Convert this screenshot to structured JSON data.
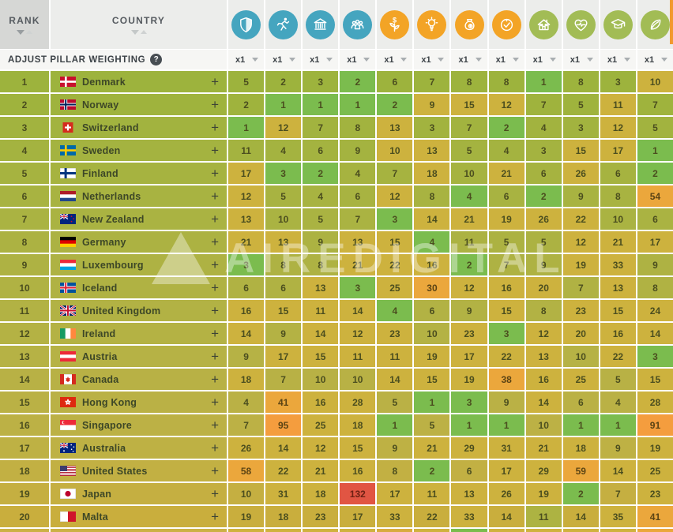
{
  "header": {
    "rank_label": "RANK",
    "country_label": "COUNTRY",
    "pillars": [
      {
        "icon": "shield-icon",
        "color": "#45a5bf"
      },
      {
        "icon": "runner-icon",
        "color": "#45a5bf"
      },
      {
        "icon": "bank-icon",
        "color": "#45a5bf"
      },
      {
        "icon": "people-icon",
        "color": "#45a5bf"
      },
      {
        "icon": "money-plant-icon",
        "color": "#f3a426"
      },
      {
        "icon": "lightbulb-icon",
        "color": "#f3a426"
      },
      {
        "icon": "money-bag-icon",
        "color": "#f3a426"
      },
      {
        "icon": "dollar-check-icon",
        "color": "#f3a426"
      },
      {
        "icon": "house-icon",
        "color": "#a2bc55"
      },
      {
        "icon": "heart-pulse-icon",
        "color": "#a2bc55"
      },
      {
        "icon": "graduation-cap-icon",
        "color": "#a2bc55"
      },
      {
        "icon": "leaf-icon",
        "color": "#a2bc55"
      }
    ]
  },
  "weighting": {
    "label": "ADJUST PILLAR WEIGHTING",
    "help_label": "?",
    "multipliers": [
      "x1",
      "x1",
      "x1",
      "x1",
      "x1",
      "x1",
      "x1",
      "x1",
      "x1",
      "x1",
      "x1",
      "x1"
    ]
  },
  "add_label": "+",
  "watermark": {
    "text": "AIREDIGITAL"
  },
  "palette": {
    "G": "#7bbc4e",
    "O": "#adb342",
    "Y": "#cdb23e",
    "A": "#eba73c",
    "R": "#f49d3e",
    "X": "#e15543"
  },
  "accents": {
    "orange_strip": "#f2992f"
  },
  "rows": [
    {
      "rank": 1,
      "country": "Denmark",
      "flag": "dk",
      "row_color": "#9db33d",
      "values": [
        5,
        2,
        3,
        2,
        6,
        7,
        8,
        8,
        1,
        8,
        3,
        10
      ],
      "cell_colors": [
        "-",
        "-",
        "-",
        "G",
        "-",
        "-",
        "-",
        "-",
        "G",
        "-",
        "-",
        "Y"
      ]
    },
    {
      "rank": 2,
      "country": "Norway",
      "flag": "no",
      "row_color": "#9fb33d",
      "values": [
        2,
        1,
        1,
        1,
        2,
        9,
        15,
        12,
        7,
        5,
        11,
        7
      ],
      "cell_colors": [
        "-",
        "G",
        "G",
        "G",
        "G",
        "Y",
        "Y",
        "Y",
        "-",
        "-",
        "Y",
        "-"
      ]
    },
    {
      "rank": 3,
      "country": "Switzerland",
      "flag": "ch",
      "row_color": "#a2b33f",
      "values": [
        1,
        12,
        7,
        8,
        13,
        3,
        7,
        2,
        4,
        3,
        12,
        5
      ],
      "cell_colors": [
        "G",
        "Y",
        "-",
        "-",
        "Y",
        "-",
        "-",
        "G",
        "-",
        "-",
        "Y",
        "-"
      ]
    },
    {
      "rank": 4,
      "country": "Sweden",
      "flag": "se",
      "row_color": "#a4b340",
      "values": [
        11,
        4,
        6,
        9,
        10,
        13,
        5,
        4,
        3,
        15,
        17,
        1
      ],
      "cell_colors": [
        "-",
        "-",
        "-",
        "-",
        "Y",
        "Y",
        "-",
        "-",
        "-",
        "Y",
        "Y",
        "G"
      ]
    },
    {
      "rank": 5,
      "country": "Finland",
      "flag": "fi",
      "row_color": "#a6b340",
      "values": [
        17,
        3,
        2,
        4,
        7,
        18,
        10,
        21,
        6,
        26,
        6,
        2
      ],
      "cell_colors": [
        "Y",
        "G",
        "G",
        "-",
        "-",
        "Y",
        "-",
        "Y",
        "-",
        "Y",
        "-",
        "G"
      ]
    },
    {
      "rank": 6,
      "country": "Netherlands",
      "flag": "nl",
      "row_color": "#a8b341",
      "values": [
        12,
        5,
        4,
        6,
        12,
        8,
        4,
        6,
        2,
        9,
        8,
        54
      ],
      "cell_colors": [
        "Y",
        "-",
        "-",
        "-",
        "Y",
        "-",
        "G",
        "-",
        "G",
        "-",
        "-",
        "A"
      ]
    },
    {
      "rank": 7,
      "country": "New Zealand",
      "flag": "nz",
      "row_color": "#aab342",
      "values": [
        13,
        10,
        5,
        7,
        3,
        14,
        21,
        19,
        26,
        22,
        10,
        6
      ],
      "cell_colors": [
        "Y",
        "-",
        "-",
        "-",
        "G",
        "Y",
        "Y",
        "Y",
        "Y",
        "Y",
        "-",
        "-"
      ]
    },
    {
      "rank": 8,
      "country": "Germany",
      "flag": "de",
      "row_color": "#acb242",
      "values": [
        21,
        13,
        9,
        13,
        15,
        4,
        11,
        5,
        5,
        12,
        21,
        17
      ],
      "cell_colors": [
        "Y",
        "Y",
        "-",
        "Y",
        "Y",
        "G",
        "-",
        "-",
        "-",
        "Y",
        "Y",
        "Y"
      ]
    },
    {
      "rank": 9,
      "country": "Luxembourg",
      "flag": "lu",
      "row_color": "#aeb243",
      "values": [
        3,
        8,
        8,
        21,
        22,
        16,
        2,
        7,
        9,
        19,
        33,
        9
      ],
      "cell_colors": [
        "G",
        "-",
        "-",
        "Y",
        "Y",
        "Y",
        "G",
        "-",
        "-",
        "Y",
        "Y",
        "-"
      ]
    },
    {
      "rank": 10,
      "country": "Iceland",
      "flag": "is",
      "row_color": "#b0b243",
      "values": [
        6,
        6,
        13,
        3,
        25,
        30,
        12,
        16,
        20,
        7,
        13,
        8
      ],
      "cell_colors": [
        "-",
        "-",
        "Y",
        "G",
        "Y",
        "A",
        "Y",
        "Y",
        "Y",
        "-",
        "Y",
        "-"
      ]
    },
    {
      "rank": 11,
      "country": "United Kingdom",
      "flag": "gb",
      "row_color": "#b2b244",
      "values": [
        16,
        15,
        11,
        14,
        4,
        6,
        9,
        15,
        8,
        23,
        15,
        24
      ],
      "cell_colors": [
        "Y",
        "Y",
        "Y",
        "Y",
        "G",
        "-",
        "-",
        "Y",
        "-",
        "Y",
        "Y",
        "Y"
      ]
    },
    {
      "rank": 12,
      "country": "Ireland",
      "flag": "ie",
      "row_color": "#b4b244",
      "values": [
        14,
        9,
        14,
        12,
        23,
        10,
        23,
        3,
        12,
        20,
        16,
        14
      ],
      "cell_colors": [
        "Y",
        "-",
        "Y",
        "Y",
        "Y",
        "-",
        "Y",
        "G",
        "Y",
        "Y",
        "Y",
        "Y"
      ]
    },
    {
      "rank": 13,
      "country": "Austria",
      "flag": "at",
      "row_color": "#b6b245",
      "values": [
        9,
        17,
        15,
        11,
        11,
        19,
        17,
        22,
        13,
        10,
        22,
        3
      ],
      "cell_colors": [
        "-",
        "Y",
        "Y",
        "Y",
        "Y",
        "Y",
        "Y",
        "Y",
        "Y",
        "-",
        "Y",
        "G"
      ]
    },
    {
      "rank": 14,
      "country": "Canada",
      "flag": "ca",
      "row_color": "#b8b145",
      "values": [
        18,
        7,
        10,
        10,
        14,
        15,
        19,
        38,
        16,
        25,
        5,
        15
      ],
      "cell_colors": [
        "Y",
        "-",
        "-",
        "-",
        "Y",
        "Y",
        "Y",
        "A",
        "Y",
        "Y",
        "-",
        "Y"
      ]
    },
    {
      "rank": 15,
      "country": "Hong Kong",
      "flag": "hk",
      "row_color": "#bab145",
      "values": [
        4,
        41,
        16,
        28,
        5,
        1,
        3,
        9,
        14,
        6,
        4,
        28
      ],
      "cell_colors": [
        "-",
        "A",
        "Y",
        "Y",
        "-",
        "G",
        "G",
        "-",
        "Y",
        "-",
        "-",
        "Y"
      ]
    },
    {
      "rank": 16,
      "country": "Singapore",
      "flag": "sg",
      "row_color": "#bcb145",
      "values": [
        7,
        95,
        25,
        18,
        1,
        5,
        1,
        1,
        10,
        1,
        1,
        91
      ],
      "cell_colors": [
        "-",
        "R",
        "Y",
        "Y",
        "G",
        "-",
        "G",
        "G",
        "-",
        "G",
        "G",
        "R"
      ]
    },
    {
      "rank": 17,
      "country": "Australia",
      "flag": "au",
      "row_color": "#beb144",
      "values": [
        26,
        14,
        12,
        15,
        9,
        21,
        29,
        31,
        21,
        18,
        9,
        19
      ],
      "cell_colors": [
        "Y",
        "Y",
        "Y",
        "Y",
        "-",
        "Y",
        "Y",
        "Y",
        "Y",
        "Y",
        "-",
        "Y"
      ]
    },
    {
      "rank": 18,
      "country": "United States",
      "flag": "us",
      "row_color": "#c2b043",
      "values": [
        58,
        22,
        21,
        16,
        8,
        2,
        6,
        17,
        29,
        59,
        14,
        25
      ],
      "cell_colors": [
        "A",
        "Y",
        "Y",
        "Y",
        "-",
        "G",
        "-",
        "Y",
        "Y",
        "A",
        "Y",
        "Y"
      ]
    },
    {
      "rank": 19,
      "country": "Japan",
      "flag": "jp",
      "row_color": "#c5af41",
      "values": [
        10,
        31,
        18,
        132,
        17,
        11,
        13,
        26,
        19,
        2,
        7,
        23
      ],
      "cell_colors": [
        "-",
        "Y",
        "Y",
        "X",
        "Y",
        "Y",
        "Y",
        "Y",
        "Y",
        "G",
        "-",
        "Y"
      ]
    },
    {
      "rank": 20,
      "country": "Malta",
      "flag": "mt",
      "row_color": "#c9ae3d",
      "values": [
        19,
        18,
        23,
        17,
        33,
        22,
        33,
        14,
        11,
        14,
        35,
        41
      ],
      "cell_colors": [
        "-",
        "-",
        "-",
        "-",
        "Y",
        "-",
        "Y",
        "-",
        "O",
        "-",
        "Y",
        "A"
      ]
    }
  ],
  "partial_row": {
    "colors": [
      "#cbb145",
      "#cbb145",
      "#cfb23e",
      "#cfb23e",
      "#cfb23e",
      "#cfb23e",
      "#d8ab3f",
      "#cfb23e",
      "#7abc4d",
      "#cfb23e",
      "#cfb23e",
      "#cfb23e",
      "#cfb23e",
      "#eba73c"
    ]
  }
}
